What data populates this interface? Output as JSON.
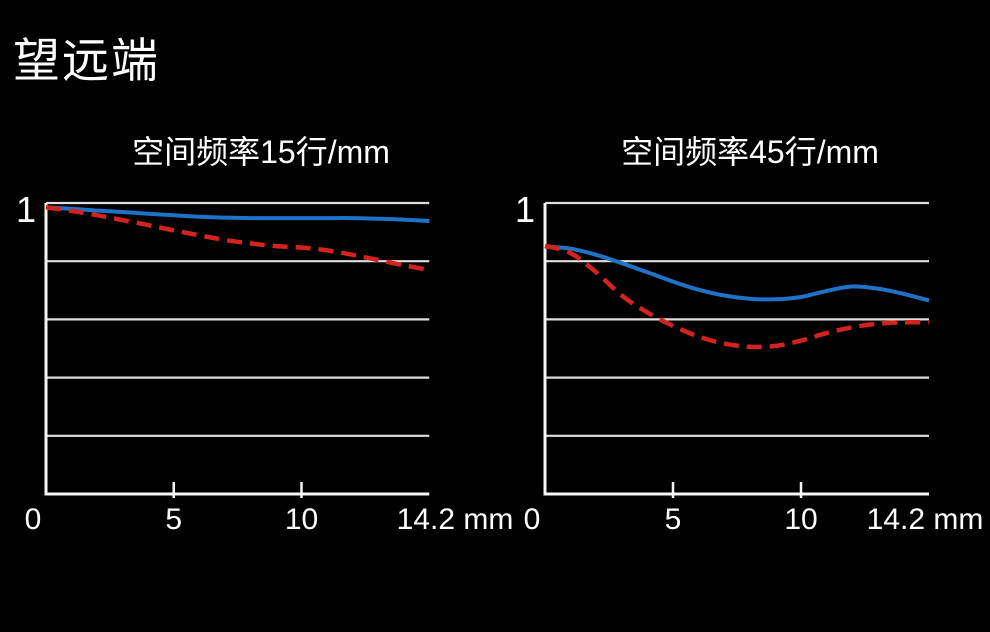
{
  "page": {
    "title": "望远端"
  },
  "colors": {
    "background": "#000000",
    "text": "#ffffff",
    "grid": "#dedede",
    "axis": "#f6f6f6",
    "blue_line": "#1e73c8",
    "red_line": "#d4231f"
  },
  "chart_data": [
    {
      "type": "line",
      "title": "空间频率15行/mm",
      "y_axis_label": "1",
      "xlim": [
        0,
        15
      ],
      "ylim": [
        0,
        1
      ],
      "y_grid_step": 0.2,
      "grid": true,
      "legend": "none",
      "x_unit": "mm",
      "x_ticks": [
        {
          "value": 0,
          "label": "0"
        },
        {
          "value": 5,
          "label": "5"
        },
        {
          "value": 10,
          "label": "10"
        }
      ],
      "x_end": {
        "value": 14.2,
        "label": "14.2 mm"
      },
      "x_mm": [
        0,
        1,
        2,
        3,
        4,
        5,
        6,
        7,
        8,
        9,
        10,
        11,
        12,
        13,
        14,
        15
      ],
      "series": [
        {
          "id": "blue-solid",
          "color": "#1e73c8",
          "dash": false,
          "values": [
            0.985,
            0.98,
            0.974,
            0.969,
            0.963,
            0.958,
            0.953,
            0.95,
            0.948,
            0.948,
            0.948,
            0.948,
            0.948,
            0.946,
            0.943,
            0.938
          ]
        },
        {
          "id": "red-dashed",
          "color": "#d4231f",
          "dash": true,
          "values": [
            0.985,
            0.973,
            0.958,
            0.941,
            0.924,
            0.906,
            0.889,
            0.873,
            0.861,
            0.852,
            0.847,
            0.837,
            0.822,
            0.804,
            0.786,
            0.77
          ]
        }
      ]
    },
    {
      "type": "line",
      "title": "空间频率45行/mm",
      "y_axis_label": "1",
      "xlim": [
        0,
        15
      ],
      "ylim": [
        0,
        1
      ],
      "y_grid_step": 0.2,
      "grid": true,
      "legend": "none",
      "x_unit": "mm",
      "x_ticks": [
        {
          "value": 0,
          "label": "0"
        },
        {
          "value": 5,
          "label": "5"
        },
        {
          "value": 10,
          "label": "10"
        }
      ],
      "x_end": {
        "value": 14.2,
        "label": "14.2 mm"
      },
      "x_mm": [
        0,
        1,
        2,
        3,
        4,
        5,
        6,
        7,
        8,
        9,
        10,
        11,
        12,
        13,
        14,
        15
      ],
      "series": [
        {
          "id": "blue-solid",
          "color": "#1e73c8",
          "dash": false,
          "values": [
            0.85,
            0.843,
            0.822,
            0.793,
            0.762,
            0.73,
            0.702,
            0.682,
            0.671,
            0.669,
            0.677,
            0.698,
            0.713,
            0.706,
            0.688,
            0.665
          ]
        },
        {
          "id": "red-dashed",
          "color": "#d4231f",
          "dash": true,
          "values": [
            0.853,
            0.828,
            0.762,
            0.682,
            0.624,
            0.578,
            0.541,
            0.517,
            0.506,
            0.509,
            0.527,
            0.553,
            0.573,
            0.585,
            0.59,
            0.59
          ]
        }
      ]
    }
  ]
}
